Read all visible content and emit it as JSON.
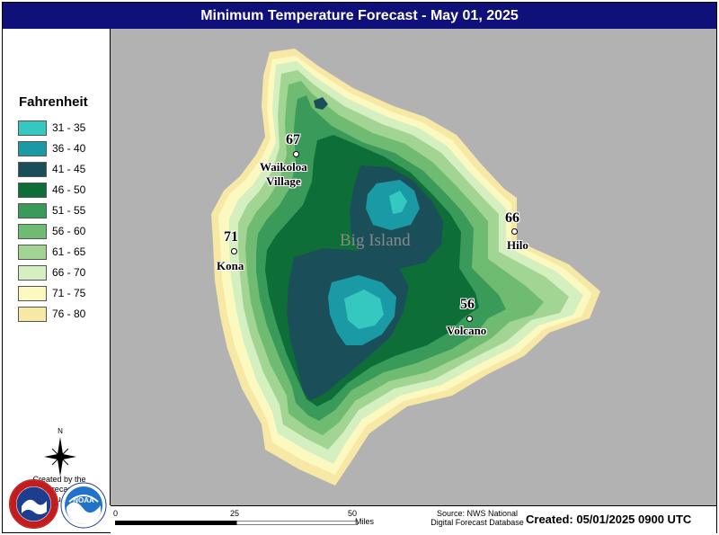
{
  "title": "Minimum Temperature Forecast - May 01, 2025",
  "legend": {
    "title": "Fahrenheit",
    "items": [
      {
        "label": "31 - 35",
        "color": "#34c8c0"
      },
      {
        "label": "36 - 40",
        "color": "#1a9aa4"
      },
      {
        "label": "41 - 45",
        "color": "#1a4f5a"
      },
      {
        "label": "46 - 50",
        "color": "#0e6e38"
      },
      {
        "label": "51 - 55",
        "color": "#3a9a5a"
      },
      {
        "label": "56 - 60",
        "color": "#6fbb72"
      },
      {
        "label": "61 - 65",
        "color": "#a2d494"
      },
      {
        "label": "66 - 70",
        "color": "#d4efc0"
      },
      {
        "label": "71 - 75",
        "color": "#fbf8c0"
      },
      {
        "label": "76 - 80",
        "color": "#f7e8a6"
      }
    ]
  },
  "north_label": "N",
  "credits": {
    "line1": "Created by the",
    "line2": "NWS Forecast Office",
    "line3": "Honolulu, Hawaii"
  },
  "map": {
    "region_label": "Big Island",
    "cities": [
      {
        "name1": "Waikoloa",
        "name2": "Village",
        "value": "67"
      },
      {
        "name1": "Kona",
        "name2": "",
        "value": "71"
      },
      {
        "name1": "Hilo",
        "name2": "",
        "value": "66"
      },
      {
        "name1": "Volcano",
        "name2": "",
        "value": "56"
      }
    ]
  },
  "scale": {
    "ticks": [
      "0",
      "25",
      "50"
    ],
    "units": "Miles"
  },
  "source": "Source: NWS National Digital Forecast Database",
  "created": "Created: 05/01/2025 0900 UTC",
  "logos": {
    "nws": "NATIONAL WEATHER SERVICE",
    "noaa": "NOAA"
  }
}
